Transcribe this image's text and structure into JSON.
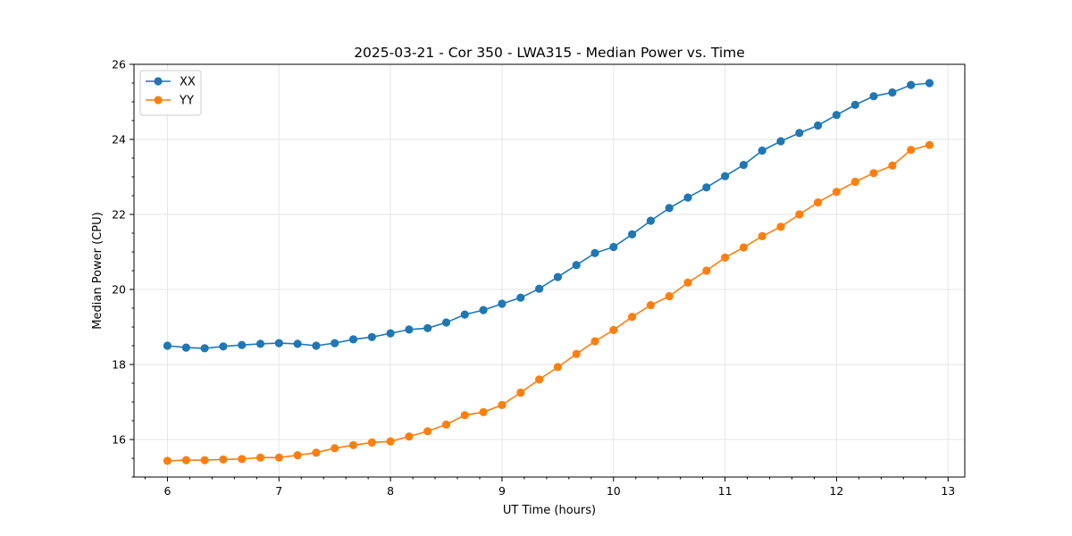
{
  "chart_data": {
    "type": "line",
    "title": "2025-03-21 - Cor 350 - LWA315 - Median Power vs. Time",
    "xlabel": "UT Time (hours)",
    "ylabel": "Median Power (CPU)",
    "xlim": [
      5.7,
      13.15
    ],
    "ylim": [
      15.0,
      26.0
    ],
    "xticks": [
      6,
      7,
      8,
      9,
      10,
      11,
      12,
      13
    ],
    "yticks": [
      16,
      18,
      20,
      22,
      24,
      26
    ],
    "grid": true,
    "legend_position": "top-left",
    "x": [
      6.0,
      6.1667,
      6.3333,
      6.5,
      6.6667,
      6.8333,
      7.0,
      7.1667,
      7.3333,
      7.5,
      7.6667,
      7.8333,
      8.0,
      8.1667,
      8.3333,
      8.5,
      8.6667,
      8.8333,
      9.0,
      9.1667,
      9.3333,
      9.5,
      9.6667,
      9.8333,
      10.0,
      10.1667,
      10.3333,
      10.5,
      10.6667,
      10.8333,
      11.0,
      11.1667,
      11.3333,
      11.5,
      11.6667,
      11.8333,
      12.0,
      12.1667,
      12.3333,
      12.5,
      12.6667,
      12.8333
    ],
    "series": [
      {
        "name": "XX",
        "color": "#1f77b4",
        "values": [
          18.5,
          18.45,
          18.43,
          18.48,
          18.52,
          18.55,
          18.57,
          18.55,
          18.5,
          18.57,
          18.67,
          18.73,
          18.83,
          18.93,
          18.97,
          19.12,
          19.33,
          19.45,
          19.62,
          19.78,
          20.02,
          20.33,
          20.65,
          20.97,
          21.13,
          21.47,
          21.83,
          22.17,
          22.45,
          22.72,
          23.02,
          23.32,
          23.7,
          23.95,
          24.17,
          24.37,
          24.65,
          24.92,
          25.15,
          25.25,
          25.45,
          25.5
        ]
      },
      {
        "name": "YY",
        "color": "#ff7f0e",
        "values": [
          15.43,
          15.45,
          15.45,
          15.47,
          15.48,
          15.52,
          15.52,
          15.58,
          15.65,
          15.77,
          15.85,
          15.92,
          15.95,
          16.08,
          16.22,
          16.4,
          16.65,
          16.73,
          16.92,
          17.25,
          17.6,
          17.93,
          18.28,
          18.62,
          18.92,
          19.27,
          19.58,
          19.82,
          20.18,
          20.5,
          20.85,
          21.12,
          21.42,
          21.67,
          22.0,
          22.32,
          22.6,
          22.87,
          23.1,
          23.3,
          23.72,
          23.85
        ]
      }
    ]
  }
}
